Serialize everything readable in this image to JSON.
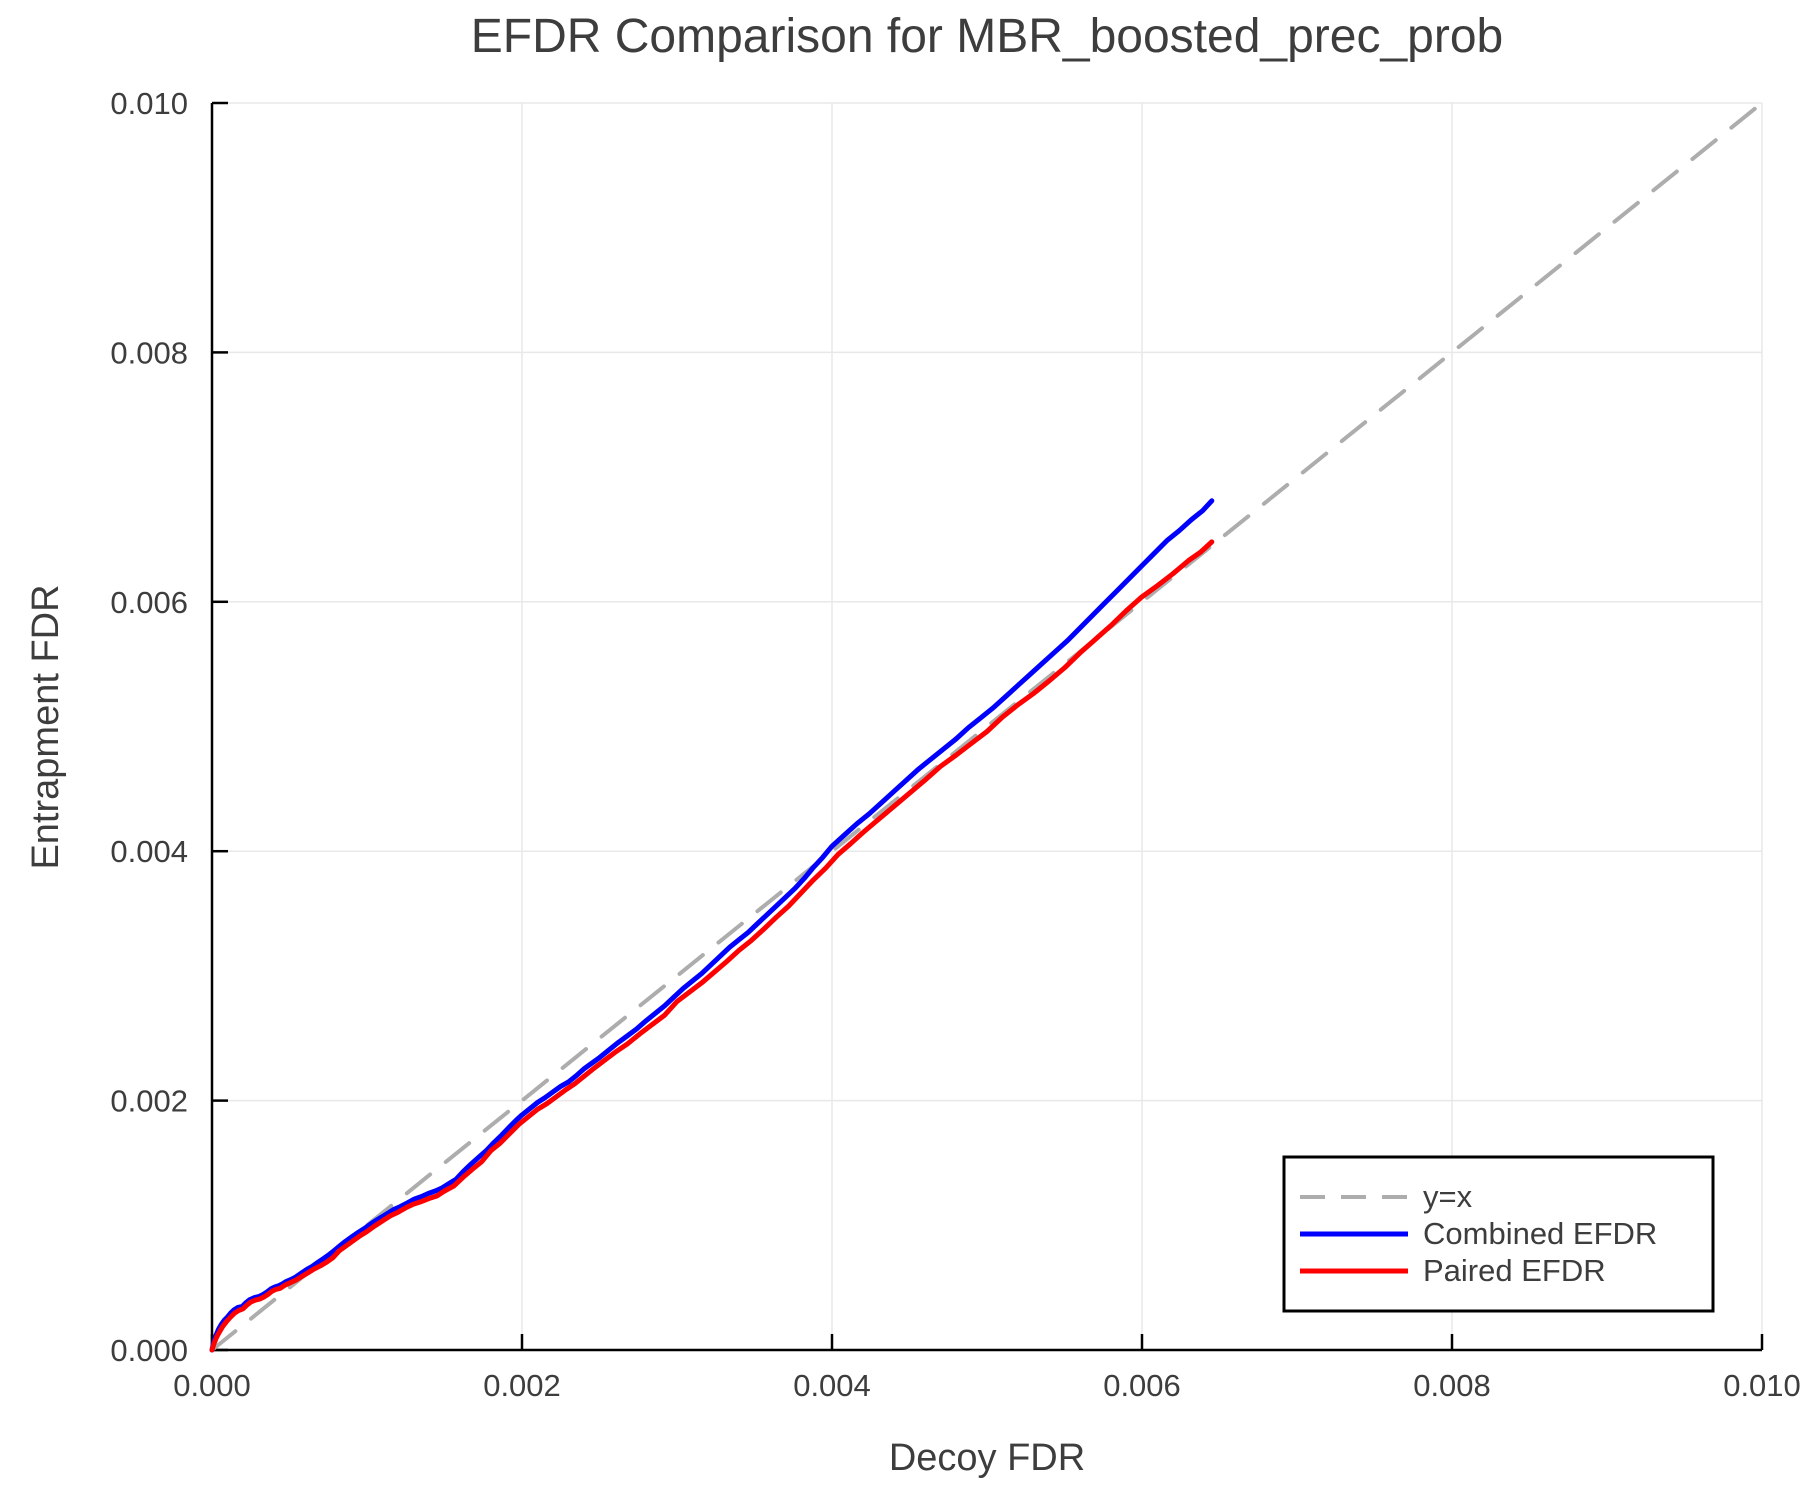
{
  "chart_data": {
    "type": "line",
    "title": "EFDR Comparison for MBR_boosted_prec_prob",
    "xlabel": "Decoy FDR",
    "ylabel": "Entrapment FDR",
    "xlim": [
      0.0,
      0.01
    ],
    "ylim": [
      0.0,
      0.01
    ],
    "grid": true,
    "xticks": {
      "values": [
        0.0,
        0.002,
        0.004,
        0.006,
        0.008,
        0.01
      ],
      "labels": [
        "0.000",
        "0.002",
        "0.004",
        "0.006",
        "0.008",
        "0.010"
      ]
    },
    "yticks": {
      "values": [
        0.0,
        0.002,
        0.004,
        0.006,
        0.008,
        0.01
      ],
      "labels": [
        "0.000",
        "0.002",
        "0.004",
        "0.006",
        "0.008",
        "0.010"
      ]
    },
    "legend": {
      "position": "lower right"
    },
    "series": [
      {
        "name": "y=x",
        "style": "dashed",
        "color": "#adadad",
        "points": [
          [
            0.0,
            0.0
          ],
          [
            0.01,
            0.01
          ]
        ]
      },
      {
        "name": "Combined EFDR",
        "style": "solid",
        "color": "#0000ff",
        "points": [
          [
            0.0,
            0.0
          ],
          [
            1e-05,
            6e-05
          ],
          [
            2.5e-05,
            0.000115
          ],
          [
            4e-05,
            0.00016
          ],
          [
            6e-05,
            0.000205
          ],
          [
            8e-05,
            0.00024
          ],
          [
            0.0001,
            0.000265
          ],
          [
            0.00012,
            0.000295
          ],
          [
            0.00014,
            0.00032
          ],
          [
            0.000165,
            0.00034
          ],
          [
            0.000195,
            0.00035
          ],
          [
            0.00022,
            0.00038
          ],
          [
            0.000245,
            0.000405
          ],
          [
            0.000275,
            0.00042
          ],
          [
            0.000305,
            0.00043
          ],
          [
            0.00033,
            0.000445
          ],
          [
            0.000355,
            0.000465
          ],
          [
            0.00038,
            0.00049
          ],
          [
            0.000405,
            0.000505
          ],
          [
            0.00043,
            0.000515
          ],
          [
            0.000455,
            0.00053
          ],
          [
            0.00048,
            0.00055
          ],
          [
            0.00051,
            0.000565
          ],
          [
            0.00054,
            0.000585
          ],
          [
            0.000575,
            0.000615
          ],
          [
            0.00061,
            0.000645
          ],
          [
            0.000645,
            0.00067
          ],
          [
            0.00068,
            0.0007
          ],
          [
            0.000715,
            0.00073
          ],
          [
            0.00075,
            0.00076
          ],
          [
            0.000785,
            0.000795
          ],
          [
            0.00082,
            0.00083
          ],
          [
            0.00086,
            0.00087
          ],
          [
            0.0009,
            0.000905
          ],
          [
            0.000945,
            0.000945
          ],
          [
            0.00099,
            0.00098
          ],
          [
            0.001035,
            0.00102
          ],
          [
            0.00108,
            0.001055
          ],
          [
            0.001125,
            0.00109
          ],
          [
            0.00117,
            0.001125
          ],
          [
            0.001215,
            0.00115
          ],
          [
            0.00126,
            0.00118
          ],
          [
            0.001305,
            0.00121
          ],
          [
            0.00135,
            0.00123
          ],
          [
            0.001395,
            0.001255
          ],
          [
            0.00144,
            0.001275
          ],
          [
            0.001485,
            0.0013
          ],
          [
            0.00153,
            0.001335
          ],
          [
            0.001575,
            0.00137
          ],
          [
            0.00162,
            0.00143
          ],
          [
            0.00167,
            0.00149
          ],
          [
            0.00172,
            0.001545
          ],
          [
            0.00177,
            0.0016
          ],
          [
            0.00182,
            0.001665
          ],
          [
            0.00187,
            0.001725
          ],
          [
            0.00192,
            0.00179
          ],
          [
            0.00196,
            0.00184
          ],
          [
            0.002,
            0.001885
          ],
          [
            0.00205,
            0.001935
          ],
          [
            0.0021,
            0.001985
          ],
          [
            0.00215,
            0.002025
          ],
          [
            0.0022,
            0.00207
          ],
          [
            0.00225,
            0.002115
          ],
          [
            0.0023,
            0.00215
          ],
          [
            0.00235,
            0.0022
          ],
          [
            0.0024,
            0.002255
          ],
          [
            0.00245,
            0.0023
          ],
          [
            0.0025,
            0.002345
          ],
          [
            0.00256,
            0.002405
          ],
          [
            0.00262,
            0.002465
          ],
          [
            0.00268,
            0.00252
          ],
          [
            0.00274,
            0.002575
          ],
          [
            0.0028,
            0.00264
          ],
          [
            0.00286,
            0.0027
          ],
          [
            0.00292,
            0.00276
          ],
          [
            0.00298,
            0.00283
          ],
          [
            0.00304,
            0.0029
          ],
          [
            0.0031,
            0.00296
          ],
          [
            0.00316,
            0.00302
          ],
          [
            0.00322,
            0.00309
          ],
          [
            0.00328,
            0.00316
          ],
          [
            0.00334,
            0.00323
          ],
          [
            0.0034,
            0.00329
          ],
          [
            0.00346,
            0.00335
          ],
          [
            0.00352,
            0.00342
          ],
          [
            0.00358,
            0.00349
          ],
          [
            0.00364,
            0.00356
          ],
          [
            0.0037,
            0.00363
          ],
          [
            0.00376,
            0.0037
          ],
          [
            0.00382,
            0.00378
          ],
          [
            0.00388,
            0.00387
          ],
          [
            0.00394,
            0.00395
          ],
          [
            0.004,
            0.00404
          ],
          [
            0.00408,
            0.00413
          ],
          [
            0.00416,
            0.00422
          ],
          [
            0.00424,
            0.0043
          ],
          [
            0.00432,
            0.00439
          ],
          [
            0.0044,
            0.00448
          ],
          [
            0.00448,
            0.00457
          ],
          [
            0.00456,
            0.00466
          ],
          [
            0.00464,
            0.00474
          ],
          [
            0.00472,
            0.00482
          ],
          [
            0.0048,
            0.0049
          ],
          [
            0.00488,
            0.00499
          ],
          [
            0.00496,
            0.00507
          ],
          [
            0.00504,
            0.00515
          ],
          [
            0.00512,
            0.00524
          ],
          [
            0.0052,
            0.00533
          ],
          [
            0.00528,
            0.00542
          ],
          [
            0.00536,
            0.00551
          ],
          [
            0.00544,
            0.0056
          ],
          [
            0.00552,
            0.00569
          ],
          [
            0.0056,
            0.00579
          ],
          [
            0.00568,
            0.00589
          ],
          [
            0.00576,
            0.00599
          ],
          [
            0.00584,
            0.00609
          ],
          [
            0.00592,
            0.00619
          ],
          [
            0.006,
            0.00629
          ],
          [
            0.00608,
            0.00639
          ],
          [
            0.00616,
            0.00649
          ],
          [
            0.00624,
            0.00657
          ],
          [
            0.00632,
            0.00666
          ],
          [
            0.00639,
            0.00673
          ],
          [
            0.00645,
            0.00681
          ]
        ]
      },
      {
        "name": "Paired EFDR",
        "style": "solid",
        "color": "#ff0000",
        "points": [
          [
            0.0,
            0.0
          ],
          [
            1.2e-05,
            5e-05
          ],
          [
            3e-05,
            0.000105
          ],
          [
            5e-05,
            0.00015
          ],
          [
            7e-05,
            0.00019
          ],
          [
            9.5e-05,
            0.00023
          ],
          [
            0.00012,
            0.000265
          ],
          [
            0.000145,
            0.000295
          ],
          [
            0.00017,
            0.000315
          ],
          [
            0.0002,
            0.00033
          ],
          [
            0.000225,
            0.00036
          ],
          [
            0.00025,
            0.000385
          ],
          [
            0.00028,
            0.0004
          ],
          [
            0.00031,
            0.00041
          ],
          [
            0.000335,
            0.000425
          ],
          [
            0.00036,
            0.000445
          ],
          [
            0.000385,
            0.00047
          ],
          [
            0.00041,
            0.000485
          ],
          [
            0.00044,
            0.000495
          ],
          [
            0.00047,
            0.00052
          ],
          [
            0.000505,
            0.00054
          ],
          [
            0.00054,
            0.00056
          ],
          [
            0.00058,
            0.00059
          ],
          [
            0.00062,
            0.00062
          ],
          [
            0.00066,
            0.00065
          ],
          [
            0.0007,
            0.000675
          ],
          [
            0.00074,
            0.000705
          ],
          [
            0.00078,
            0.00074
          ],
          [
            0.00082,
            0.000795
          ],
          [
            0.000865,
            0.000835
          ],
          [
            0.00091,
            0.000875
          ],
          [
            0.000955,
            0.000915
          ],
          [
            0.001,
            0.00095
          ],
          [
            0.00105,
            0.000995
          ],
          [
            0.0011,
            0.001035
          ],
          [
            0.00115,
            0.001075
          ],
          [
            0.0012,
            0.001105
          ],
          [
            0.00125,
            0.00114
          ],
          [
            0.0013,
            0.00117
          ],
          [
            0.00135,
            0.00119
          ],
          [
            0.0014,
            0.001215
          ],
          [
            0.00145,
            0.001235
          ],
          [
            0.0015,
            0.001275
          ],
          [
            0.00156,
            0.001315
          ],
          [
            0.00162,
            0.001385
          ],
          [
            0.00168,
            0.00145
          ],
          [
            0.00174,
            0.00151
          ],
          [
            0.0018,
            0.0016
          ],
          [
            0.00186,
            0.00166
          ],
          [
            0.00192,
            0.001735
          ],
          [
            0.00198,
            0.00181
          ],
          [
            0.00204,
            0.00187
          ],
          [
            0.0021,
            0.00193
          ],
          [
            0.00216,
            0.001975
          ],
          [
            0.00222,
            0.00203
          ],
          [
            0.00228,
            0.002085
          ],
          [
            0.00234,
            0.002135
          ],
          [
            0.0024,
            0.002195
          ],
          [
            0.00247,
            0.002265
          ],
          [
            0.00254,
            0.00233
          ],
          [
            0.00261,
            0.002395
          ],
          [
            0.00268,
            0.002455
          ],
          [
            0.00276,
            0.002535
          ],
          [
            0.00284,
            0.00261
          ],
          [
            0.00292,
            0.002685
          ],
          [
            0.003,
            0.002795
          ],
          [
            0.00308,
            0.00287
          ],
          [
            0.00316,
            0.002945
          ],
          [
            0.00324,
            0.00303
          ],
          [
            0.00332,
            0.003115
          ],
          [
            0.0034,
            0.003205
          ],
          [
            0.00348,
            0.003285
          ],
          [
            0.00356,
            0.003375
          ],
          [
            0.00364,
            0.00347
          ],
          [
            0.00372,
            0.00356
          ],
          [
            0.0038,
            0.003665
          ],
          [
            0.00388,
            0.00377
          ],
          [
            0.00396,
            0.003865
          ],
          [
            0.00404,
            0.003975
          ],
          [
            0.00412,
            0.00406
          ],
          [
            0.0042,
            0.00415
          ],
          [
            0.0043,
            0.004255
          ],
          [
            0.0044,
            0.00436
          ],
          [
            0.0045,
            0.004465
          ],
          [
            0.0046,
            0.00457
          ],
          [
            0.0047,
            0.00468
          ],
          [
            0.0048,
            0.00477
          ],
          [
            0.0049,
            0.004865
          ],
          [
            0.005,
            0.00496
          ],
          [
            0.0051,
            0.005075
          ],
          [
            0.0052,
            0.005175
          ],
          [
            0.0053,
            0.005265
          ],
          [
            0.0054,
            0.005365
          ],
          [
            0.0055,
            0.00547
          ],
          [
            0.0056,
            0.00559
          ],
          [
            0.0057,
            0.0057
          ],
          [
            0.0058,
            0.00581
          ],
          [
            0.0059,
            0.00593
          ],
          [
            0.006,
            0.00604
          ],
          [
            0.0061,
            0.00613
          ],
          [
            0.0062,
            0.006225
          ],
          [
            0.0063,
            0.00633
          ],
          [
            0.00638,
            0.0064
          ],
          [
            0.00645,
            0.00648
          ]
        ]
      }
    ]
  }
}
